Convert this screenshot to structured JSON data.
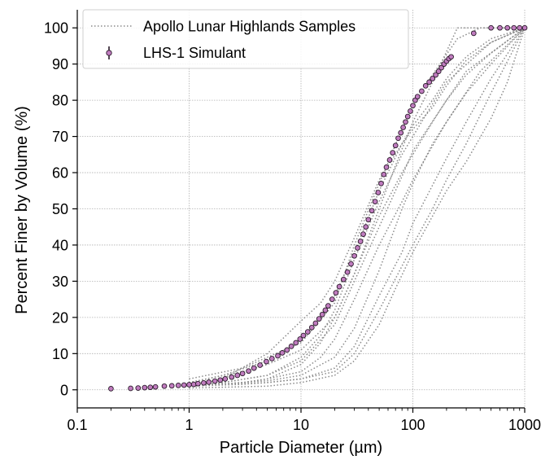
{
  "chart_data": {
    "type": "scatter",
    "xlabel": "Particle Diameter (µm)",
    "ylabel": "Percent Finer by Volume (%)",
    "xscale": "log",
    "xlim": [
      0.1,
      1000
    ],
    "ylim": [
      -5,
      105
    ],
    "xticks": [
      0.1,
      1,
      10,
      100,
      1000
    ],
    "xtick_labels": [
      "0.1",
      "1",
      "10",
      "100",
      "1000"
    ],
    "yticks": [
      0,
      10,
      20,
      30,
      40,
      50,
      60,
      70,
      80,
      90,
      100
    ],
    "ytick_labels": [
      "0",
      "10",
      "20",
      "30",
      "40",
      "50",
      "60",
      "70",
      "80",
      "90",
      "100"
    ],
    "grid": true,
    "legend_position": "top-left",
    "legend": [
      "Apollo Lunar Highlands Samples",
      "LHS-1 Simulant"
    ],
    "colors": {
      "samples": "#8a8a8a",
      "simulant": "#c07cbf",
      "simulant_edge": "#2a1a2a"
    },
    "series": [
      {
        "name": "LHS-1 Simulant",
        "kind": "markers",
        "x": [
          0.2,
          0.3,
          0.35,
          0.4,
          0.45,
          0.5,
          0.6,
          0.7,
          0.8,
          0.9,
          1.0,
          1.1,
          1.2,
          1.35,
          1.5,
          1.7,
          1.9,
          2.1,
          2.4,
          2.7,
          3.0,
          3.4,
          3.8,
          4.3,
          4.9,
          5.5,
          6.2,
          6.8,
          7.5,
          8.2,
          9.0,
          9.8,
          10.5,
          11.5,
          12.5,
          13.5,
          14.5,
          15.5,
          16.5,
          17.5,
          19,
          20.5,
          22,
          24,
          26,
          28,
          30,
          32,
          34,
          36,
          38,
          40,
          43,
          46,
          49,
          52,
          55,
          58,
          62,
          66,
          70,
          74,
          78,
          82,
          86,
          90,
          95,
          100,
          105,
          110,
          120,
          130,
          140,
          150,
          160,
          170,
          180,
          190,
          200,
          210,
          220,
          350,
          500,
          600,
          700,
          800,
          900,
          1000
        ],
        "y": [
          0.3,
          0.4,
          0.5,
          0.6,
          0.7,
          0.8,
          1.0,
          1.1,
          1.2,
          1.3,
          1.4,
          1.5,
          1.7,
          1.9,
          2.1,
          2.4,
          2.7,
          3.0,
          3.5,
          4.0,
          4.5,
          5.2,
          6.0,
          6.8,
          7.8,
          8.6,
          9.4,
          10.2,
          11.0,
          12.0,
          13.0,
          14.0,
          15.0,
          16.0,
          17.2,
          18.4,
          19.6,
          20.8,
          22.0,
          23.2,
          25.0,
          26.8,
          28.5,
          30.5,
          32.5,
          34.8,
          37.0,
          39.2,
          41.0,
          43.0,
          45.0,
          47.0,
          49.5,
          52.0,
          54.5,
          57.0,
          59.5,
          61.5,
          63.5,
          65.5,
          67.5,
          69.5,
          71.0,
          72.5,
          74.0,
          75.5,
          77.0,
          78.5,
          80.0,
          81.0,
          82.5,
          84.0,
          85.0,
          86.0,
          87.0,
          88.0,
          89.0,
          90.0,
          90.8,
          91.5,
          92.0,
          98.5,
          100,
          100,
          100,
          100,
          100,
          100
        ]
      },
      {
        "name": "Apollo Lunar Highlands Samples",
        "kind": "dotted-lines",
        "curves": [
          {
            "x": [
              1,
              2,
              5,
              10,
              15,
              20,
              30,
              50,
              80,
              100,
              150,
              200,
              300,
              500,
              1000
            ],
            "y": [
              1,
              3,
              10,
              19,
              24,
              30,
              42,
              58,
              68,
              72,
              78,
              84,
              91,
              96,
              100
            ]
          },
          {
            "x": [
              1,
              2,
              5,
              10,
              15,
              20,
              30,
              50,
              80,
              100,
              150,
              200,
              300,
              500,
              1000
            ],
            "y": [
              2,
              4,
              8,
              14,
              20,
              26,
              38,
              55,
              68,
              73,
              80,
              86,
              92,
              97,
              100
            ]
          },
          {
            "x": [
              1,
              3,
              5,
              10,
              20,
              30,
              50,
              80,
              100,
              150,
              250,
              400,
              1000
            ],
            "y": [
              3,
              6,
              9,
              13,
              24,
              40,
              57,
              72,
              78,
              87,
              97,
              100,
              100
            ]
          },
          {
            "x": [
              1,
              3,
              5,
              10,
              20,
              30,
              50,
              70,
              100,
              150,
              250,
              1000
            ],
            "y": [
              2,
              5,
              7,
              11,
              20,
              32,
              50,
              62,
              74,
              85,
              100,
              100
            ]
          },
          {
            "x": [
              1,
              2,
              5,
              10,
              20,
              30,
              50,
              80,
              100,
              200,
              300,
              500,
              1000
            ],
            "y": [
              1,
              2,
              4,
              8,
              18,
              30,
              45,
              59,
              66,
              80,
              87,
              93,
              100
            ]
          },
          {
            "x": [
              1,
              3,
              5,
              10,
              15,
              20,
              30,
              50,
              80,
              100,
              200,
              300,
              500,
              1000
            ],
            "y": [
              1,
              2,
              3,
              5,
              9,
              14,
              25,
              40,
              52,
              58,
              74,
              82,
              90,
              100
            ]
          },
          {
            "x": [
              1,
              3,
              5,
              10,
              20,
              30,
              50,
              100,
              150,
              200,
              300,
              500,
              1000
            ],
            "y": [
              1,
              1.5,
              2,
              3,
              5,
              10,
              22,
              40,
              50,
              58,
              68,
              82,
              100
            ]
          },
          {
            "x": [
              1,
              5,
              10,
              20,
              30,
              50,
              70,
              100,
              150,
              200,
              300,
              500,
              700,
              1000
            ],
            "y": [
              0.5,
              1,
              2,
              4,
              8,
              18,
              28,
              38,
              48,
              55,
              63,
              75,
              85,
              100
            ]
          },
          {
            "x": [
              1,
              5,
              10,
              20,
              30,
              50,
              80,
              100,
              200,
              300,
              500,
              1000
            ],
            "y": [
              1,
              2,
              3,
              6,
              12,
              26,
              38,
              46,
              64,
              74,
              86,
              100
            ]
          },
          {
            "x": [
              1,
              3,
              5,
              10,
              15,
              20,
              30,
              50,
              80,
              100,
              150,
              200,
              300,
              1000
            ],
            "y": [
              1,
              2,
              3,
              7,
              13,
              20,
              32,
              48,
              60,
              65,
              74,
              80,
              88,
              100
            ]
          },
          {
            "x": [
              1,
              2,
              5,
              10,
              15,
              20,
              30,
              50,
              80,
              100,
              150,
              200,
              500,
              1000
            ],
            "y": [
              1,
              2,
              4,
              9,
              15,
              22,
              36,
              52,
              65,
              70,
              79,
              85,
              96,
              100
            ]
          },
          {
            "x": [
              1,
              3,
              5,
              10,
              20,
              30,
              50,
              80,
              100,
              150,
              200,
              400,
              1000
            ],
            "y": [
              1,
              2,
              2.5,
              4,
              9,
              17,
              33,
              50,
              57,
              68,
              74,
              88,
              100
            ]
          }
        ]
      }
    ]
  }
}
